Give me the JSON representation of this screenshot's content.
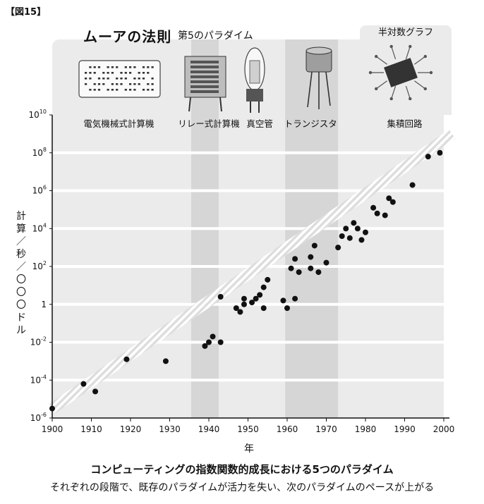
{
  "figure_label": "【図15】",
  "header": {
    "title": "ムーアの法則",
    "subtitle": "第5のパラダイム",
    "scale_note": "半対数グラフ"
  },
  "captions": {
    "main": "コンピューティングの指数関数的成長における5つのパラダイム",
    "sub": "それぞれの段階で、既存のパラダイムが活力を失い、次のパラダイムのペースが上がる"
  },
  "icons": [
    "punch-card-icon",
    "relay-icon",
    "vacuum-tube-icon",
    "transistor-icon",
    "integrated-circuit-icon"
  ],
  "chart_data": {
    "type": "scatter",
    "xlabel": "年",
    "ylabel": "計算／秒／〇〇〇ドル",
    "y_scale": "log",
    "xlim": [
      1900,
      2000
    ],
    "ylim": [
      -6,
      10
    ],
    "x_ticks": [
      "1900",
      "1910",
      "1920",
      "1930",
      "1940",
      "1950",
      "1960",
      "1970",
      "1980",
      "1990",
      "2000"
    ],
    "y_ticks": [
      {
        "exp": -6,
        "base": "10",
        "sup": "-6"
      },
      {
        "exp": -4,
        "base": "10",
        "sup": "-4"
      },
      {
        "exp": -2,
        "base": "10",
        "sup": "-2"
      },
      {
        "exp": 0,
        "base": "1",
        "sup": ""
      },
      {
        "exp": 2,
        "base": "10",
        "sup": "2"
      },
      {
        "exp": 4,
        "base": "10",
        "sup": "4"
      },
      {
        "exp": 6,
        "base": "10",
        "sup": "6"
      },
      {
        "exp": 8,
        "base": "10",
        "sup": "8"
      },
      {
        "exp": 10,
        "base": "10",
        "sup": "10"
      }
    ],
    "paradigms": [
      {
        "label": "電気機械式計算機",
        "center": 1917,
        "shaded": false,
        "range": null
      },
      {
        "label": "リレー式計算機",
        "center": 1940,
        "shaded": true,
        "range": [
          1935.5,
          1942.5
        ]
      },
      {
        "label": "真空管",
        "center": 1953,
        "shaded": false,
        "range": null
      },
      {
        "label": "トランジスタ",
        "center": 1966,
        "shaded": true,
        "range": [
          1959.5,
          1973
        ]
      },
      {
        "label": "集積回路",
        "center": 1990,
        "shaded": false,
        "range": null
      }
    ],
    "trend": {
      "x": [
        1900,
        2000
      ],
      "y": [
        -5.5,
        8.8
      ]
    },
    "grid": true,
    "colors": {
      "points": "#111111",
      "shade": "#d6d6d6",
      "trend": "#dddddd"
    },
    "points": [
      {
        "x": 1900,
        "y": -5.5
      },
      {
        "x": 1908,
        "y": -4.2
      },
      {
        "x": 1911,
        "y": -4.6
      },
      {
        "x": 1919,
        "y": -2.9
      },
      {
        "x": 1929,
        "y": -3.0
      },
      {
        "x": 1939,
        "y": -2.2
      },
      {
        "x": 1940,
        "y": -2.0
      },
      {
        "x": 1941,
        "y": -1.7
      },
      {
        "x": 1943,
        "y": -2.0
      },
      {
        "x": 1943,
        "y": 0.4
      },
      {
        "x": 1947,
        "y": -0.2
      },
      {
        "x": 1948,
        "y": -0.4
      },
      {
        "x": 1949,
        "y": 0.3
      },
      {
        "x": 1949,
        "y": 0.0
      },
      {
        "x": 1951,
        "y": 0.1
      },
      {
        "x": 1952,
        "y": 0.3
      },
      {
        "x": 1953,
        "y": 0.5
      },
      {
        "x": 1954,
        "y": -0.2
      },
      {
        "x": 1954,
        "y": 0.9
      },
      {
        "x": 1955,
        "y": 1.3
      },
      {
        "x": 1959,
        "y": 0.2
      },
      {
        "x": 1960,
        "y": -0.2
      },
      {
        "x": 1961,
        "y": 1.9
      },
      {
        "x": 1962,
        "y": 0.3
      },
      {
        "x": 1962,
        "y": 2.4
      },
      {
        "x": 1963,
        "y": 1.7
      },
      {
        "x": 1966,
        "y": 2.5
      },
      {
        "x": 1966,
        "y": 1.9
      },
      {
        "x": 1967,
        "y": 3.1
      },
      {
        "x": 1968,
        "y": 1.7
      },
      {
        "x": 1970,
        "y": 2.2
      },
      {
        "x": 1973,
        "y": 3.0
      },
      {
        "x": 1974,
        "y": 3.6
      },
      {
        "x": 1975,
        "y": 4.0
      },
      {
        "x": 1976,
        "y": 3.5
      },
      {
        "x": 1977,
        "y": 4.3
      },
      {
        "x": 1978,
        "y": 4.0
      },
      {
        "x": 1979,
        "y": 3.4
      },
      {
        "x": 1980,
        "y": 3.8
      },
      {
        "x": 1982,
        "y": 5.1
      },
      {
        "x": 1983,
        "y": 4.8
      },
      {
        "x": 1985,
        "y": 4.7
      },
      {
        "x": 1986,
        "y": 5.6
      },
      {
        "x": 1987,
        "y": 5.4
      },
      {
        "x": 1992,
        "y": 6.3
      },
      {
        "x": 1996,
        "y": 7.8
      },
      {
        "x": 1999,
        "y": 8.0
      }
    ]
  }
}
